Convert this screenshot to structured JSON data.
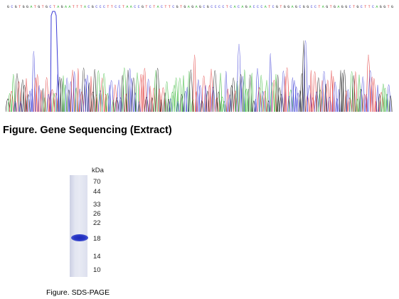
{
  "sequencing": {
    "caption": "Figure. Gene Sequencing (Extract)",
    "trace_colors": {
      "A": "#2fb52f",
      "C": "#3b3bd6",
      "G": "#1a1a1a",
      "T": "#e03030"
    }
  },
  "sds_page": {
    "unit_label": "kDa",
    "markers": [
      "70",
      "44",
      "33",
      "26",
      "22",
      "18",
      "14",
      "10"
    ],
    "caption": "Figure. SDS-PAGE",
    "band_color": "#2233c0"
  }
}
